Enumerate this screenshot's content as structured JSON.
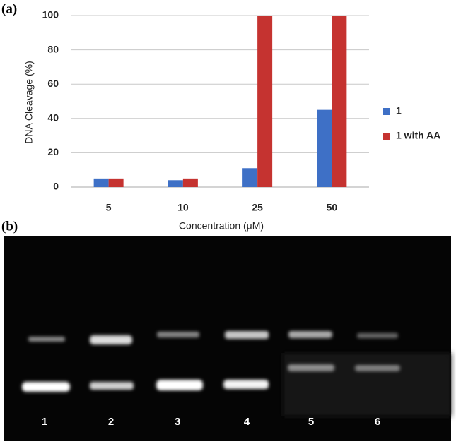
{
  "panel_labels": [
    "(a)",
    "(b)"
  ],
  "chart_data": {
    "type": "bar",
    "y_label": "DNA Cleavage  (%)",
    "x_label": "Concentration (μM)",
    "categories": [
      "5",
      "10",
      "25",
      "50"
    ],
    "series": [
      {
        "name": "1",
        "color": "#3e70c6",
        "values": [
          5,
          4,
          11,
          45
        ]
      },
      {
        "name": "1 with AA",
        "color": "#c53330",
        "values": [
          5,
          5,
          100,
          100
        ]
      }
    ],
    "ylim": [
      0,
      100
    ],
    "yticks": [
      0,
      20,
      40,
      60,
      80,
      100
    ],
    "grid": true,
    "legend": "right"
  },
  "gel": {
    "lanes": [
      "1",
      "2",
      "3",
      "4",
      "5",
      "6"
    ]
  }
}
